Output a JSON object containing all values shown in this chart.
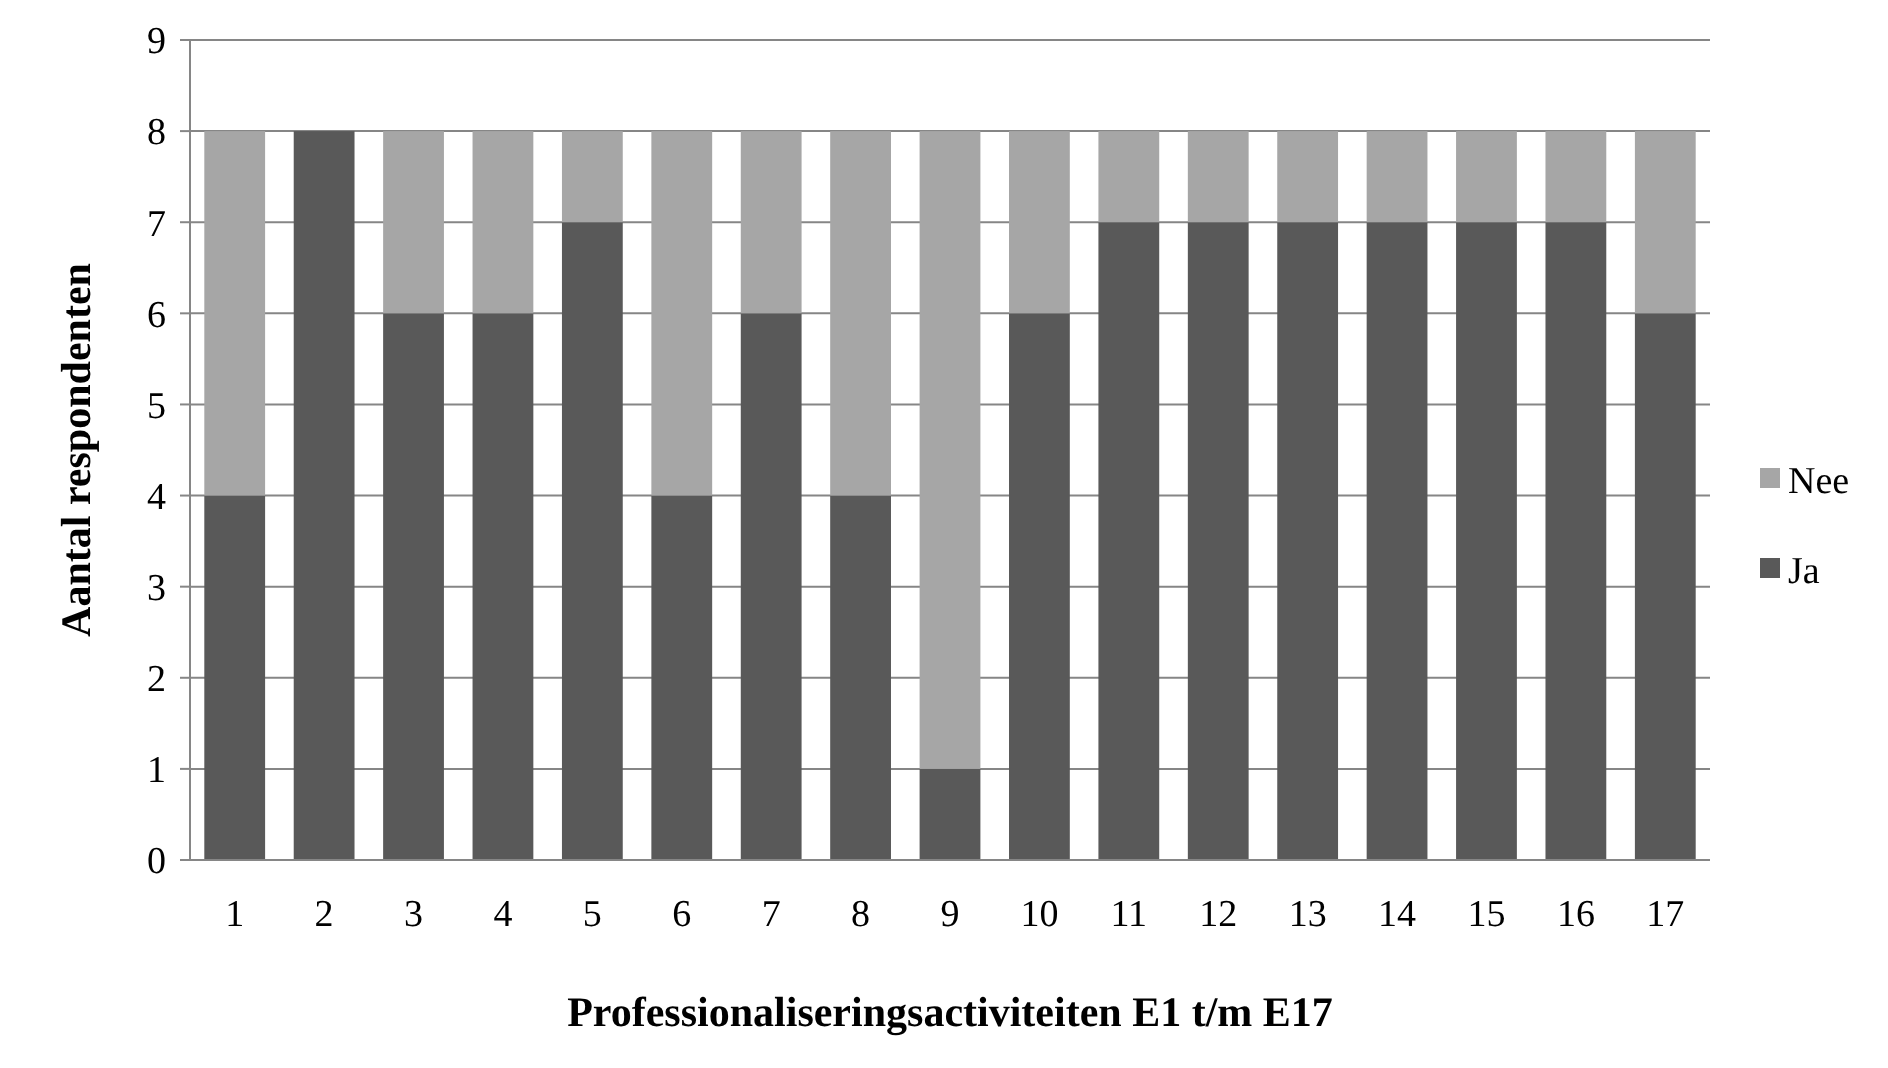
{
  "chart_data": {
    "type": "bar",
    "stacked": true,
    "xlabel": "Professionaliseringsactiviteiten E1 t/m E17",
    "ylabel": "Aantal respondenten",
    "categories": [
      "1",
      "2",
      "3",
      "4",
      "5",
      "6",
      "7",
      "8",
      "9",
      "10",
      "11",
      "12",
      "13",
      "14",
      "15",
      "16",
      "17"
    ],
    "series": [
      {
        "name": "Ja",
        "color": "#595959",
        "values": [
          4,
          8,
          6,
          6,
          7,
          4,
          6,
          4,
          1,
          6,
          7,
          7,
          7,
          7,
          7,
          7,
          6
        ]
      },
      {
        "name": "Nee",
        "color": "#a6a6a6",
        "values": [
          4,
          0,
          2,
          2,
          1,
          4,
          2,
          4,
          7,
          2,
          1,
          1,
          1,
          1,
          1,
          1,
          2
        ]
      }
    ],
    "ylim": [
      0,
      9
    ],
    "yticks": [
      0,
      1,
      2,
      3,
      4,
      5,
      6,
      7,
      8,
      9
    ],
    "grid": "y",
    "legend": "right"
  }
}
